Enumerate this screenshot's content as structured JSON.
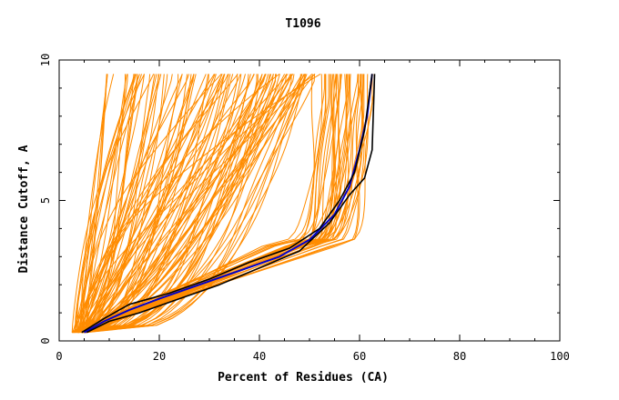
{
  "chart_data": {
    "type": "line",
    "title": "T1096",
    "xlabel": "Percent of Residues (CA)",
    "ylabel": "Distance Cutoff, A",
    "xlim": [
      0,
      100
    ],
    "ylim": [
      0,
      10
    ],
    "x_ticks": [
      "0",
      "20",
      "40",
      "60",
      "80",
      "100"
    ],
    "y_ticks": [
      "0",
      "5",
      "10"
    ],
    "grid": false,
    "colors": {
      "models": "#ff8c00",
      "highlight": "#0000cc",
      "reference": "#000000"
    },
    "series_groups": [
      {
        "role": "models",
        "count": 140,
        "envelope_x_at_cutoff_9.5": [
          10,
          63
        ],
        "envelope_x_at_cutoff_0.3": [
          2.5,
          5.5
        ]
      }
    ],
    "series": [
      {
        "role": "highlight",
        "points": [
          [
            5,
            0.3
          ],
          [
            9,
            0.7
          ],
          [
            14,
            1.1
          ],
          [
            20,
            1.5
          ],
          [
            28,
            2.0
          ],
          [
            36,
            2.5
          ],
          [
            44,
            3.0
          ],
          [
            50,
            3.6
          ],
          [
            55,
            4.5
          ],
          [
            58,
            5.5
          ],
          [
            60,
            6.8
          ],
          [
            61.5,
            8.0
          ],
          [
            62.5,
            9.5
          ]
        ]
      },
      {
        "role": "reference",
        "points": [
          [
            4.5,
            0.3
          ],
          [
            9,
            0.8
          ],
          [
            14,
            1.3
          ],
          [
            22,
            1.7
          ],
          [
            30,
            2.2
          ],
          [
            38,
            2.8
          ],
          [
            46,
            3.3
          ],
          [
            52,
            4.0
          ],
          [
            56,
            5.0
          ],
          [
            59,
            6.0
          ],
          [
            61,
            7.5
          ],
          [
            62.5,
            9.5
          ]
        ]
      },
      {
        "role": "reference",
        "points": [
          [
            5.5,
            0.3
          ],
          [
            10,
            0.7
          ],
          [
            16,
            1.0
          ],
          [
            24,
            1.5
          ],
          [
            32,
            2.0
          ],
          [
            40,
            2.6
          ],
          [
            48,
            3.2
          ],
          [
            54,
            4.2
          ],
          [
            58,
            5.2
          ],
          [
            61,
            5.8
          ],
          [
            62.5,
            6.8
          ],
          [
            63,
            9.5
          ]
        ]
      }
    ]
  }
}
